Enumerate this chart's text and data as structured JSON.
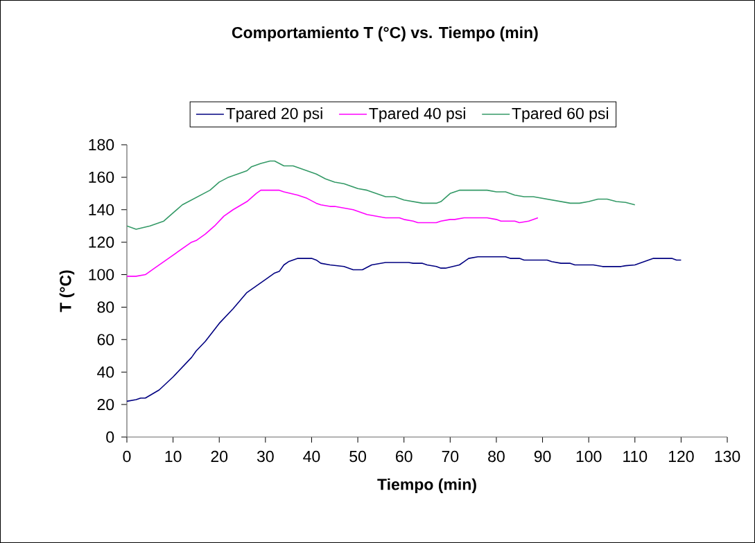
{
  "chart_data": {
    "type": "line",
    "title": "Comportamiento T (°C) vs. Tiempo (min)",
    "xlabel": "Tiempo (min)",
    "ylabel": "T (°C)",
    "xlim": [
      0,
      130
    ],
    "ylim": [
      0,
      180
    ],
    "xticks": [
      0,
      10,
      20,
      30,
      40,
      50,
      60,
      70,
      80,
      90,
      100,
      110,
      120,
      130
    ],
    "yticks": [
      0,
      20,
      40,
      60,
      80,
      100,
      120,
      140,
      160,
      180
    ],
    "legend": "top",
    "marker": "none",
    "line_style": "solid",
    "series": [
      {
        "name": "Tpared 20 psi",
        "color": "#000080",
        "x": [
          0,
          2,
          3,
          4,
          7,
          10,
          13,
          14,
          15,
          17,
          20,
          23,
          26,
          30,
          32,
          33,
          34,
          35,
          37,
          40,
          41,
          42,
          44,
          47,
          49,
          51,
          53,
          56,
          61,
          62,
          64,
          65,
          67,
          68,
          69,
          72,
          73,
          74,
          76,
          82,
          83,
          85,
          86,
          91,
          92,
          94,
          96,
          97,
          101,
          103,
          107,
          108,
          110,
          112,
          114,
          118,
          119,
          120
        ],
        "values": [
          22,
          23,
          24,
          24,
          29,
          37,
          46,
          49,
          53,
          59,
          70,
          79,
          89,
          97,
          101,
          102,
          106,
          108,
          110,
          110,
          109,
          107,
          106,
          105,
          103,
          103,
          106,
          107.5,
          107.5,
          107,
          107,
          106,
          105,
          104,
          104,
          106,
          108,
          110,
          111,
          111,
          110,
          110,
          109,
          109,
          108,
          107,
          107,
          106,
          106,
          105,
          105,
          105.5,
          106,
          108,
          110,
          110,
          109,
          109
        ]
      },
      {
        "name": "Tpared 40 psi",
        "color": "#ff00ff",
        "x": [
          0,
          2,
          4,
          6,
          9,
          12,
          14,
          15,
          17,
          19,
          21,
          23,
          26,
          28,
          29,
          33,
          34,
          37,
          39,
          41,
          42,
          44,
          45,
          47,
          49,
          51,
          52,
          54,
          56,
          59,
          60,
          62,
          63,
          67,
          68,
          70,
          71,
          73,
          78,
          80,
          81,
          84,
          85,
          87,
          89
        ],
        "values": [
          99,
          99,
          100,
          104,
          110,
          116,
          120,
          121,
          125,
          130,
          136,
          140,
          145,
          150,
          152,
          152,
          151,
          149,
          147,
          144,
          143,
          142,
          142,
          141,
          140,
          138,
          137,
          136,
          135,
          135,
          134,
          133,
          132,
          132,
          133,
          134,
          134,
          135,
          135,
          134,
          133,
          133,
          132,
          133,
          135
        ]
      },
      {
        "name": "Tpared 60 psi",
        "color": "#339966",
        "x": [
          0,
          2,
          5,
          7,
          8,
          10,
          12,
          14,
          16,
          18,
          20,
          22,
          24,
          26,
          27,
          29,
          31,
          32,
          34,
          36,
          39,
          41,
          43,
          45,
          47,
          48,
          50,
          52,
          54,
          56,
          58,
          60,
          62,
          64,
          67,
          68,
          70,
          72,
          78,
          80,
          82,
          84,
          86,
          88,
          92,
          94,
          96,
          98,
          100,
          102,
          104,
          106,
          108,
          110
        ],
        "values": [
          130,
          128,
          130,
          132,
          133,
          138,
          143,
          146,
          149,
          152,
          157,
          160,
          162,
          164,
          166.5,
          168.5,
          170,
          170,
          167,
          167,
          164,
          162,
          159,
          157,
          156,
          155,
          153,
          152,
          150,
          148,
          148,
          146,
          145,
          144,
          144,
          145,
          150,
          152,
          152,
          151,
          151,
          149,
          148,
          148,
          146,
          145,
          144,
          144,
          145,
          146.5,
          146.5,
          145,
          144.5,
          143
        ]
      }
    ]
  }
}
